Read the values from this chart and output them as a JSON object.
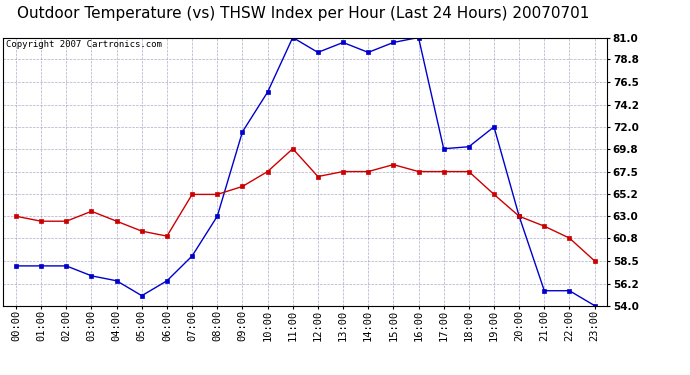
{
  "title": "Outdoor Temperature (vs) THSW Index per Hour (Last 24 Hours) 20070701",
  "copyright": "Copyright 2007 Cartronics.com",
  "hours": [
    "00:00",
    "01:00",
    "02:00",
    "03:00",
    "04:00",
    "05:00",
    "06:00",
    "07:00",
    "08:00",
    "09:00",
    "10:00",
    "11:00",
    "12:00",
    "13:00",
    "14:00",
    "15:00",
    "16:00",
    "17:00",
    "18:00",
    "19:00",
    "20:00",
    "21:00",
    "22:00",
    "23:00"
  ],
  "temp": [
    63.0,
    62.5,
    62.5,
    63.5,
    62.5,
    61.5,
    61.0,
    65.2,
    65.2,
    66.0,
    67.5,
    69.8,
    67.0,
    67.5,
    67.5,
    68.2,
    67.5,
    67.5,
    67.5,
    65.2,
    63.0,
    62.0,
    60.8,
    58.5
  ],
  "thsw": [
    58.0,
    58.0,
    58.0,
    57.0,
    56.5,
    55.0,
    56.5,
    59.0,
    63.0,
    71.5,
    75.5,
    81.0,
    79.5,
    80.5,
    79.5,
    80.5,
    81.0,
    69.8,
    70.0,
    72.0,
    63.0,
    55.5,
    55.5,
    54.0
  ],
  "temp_color": "#cc0000",
  "thsw_color": "#0000cc",
  "background_color": "#ffffff",
  "plot_bg_color": "#ffffff",
  "grid_color": "#9999bb",
  "ymin": 54.0,
  "ymax": 81.0,
  "yticks": [
    54.0,
    56.2,
    58.5,
    60.8,
    63.0,
    65.2,
    67.5,
    69.8,
    72.0,
    74.2,
    76.5,
    78.8,
    81.0
  ],
  "title_fontsize": 11,
  "copyright_fontsize": 6.5,
  "tick_fontsize": 7.5
}
